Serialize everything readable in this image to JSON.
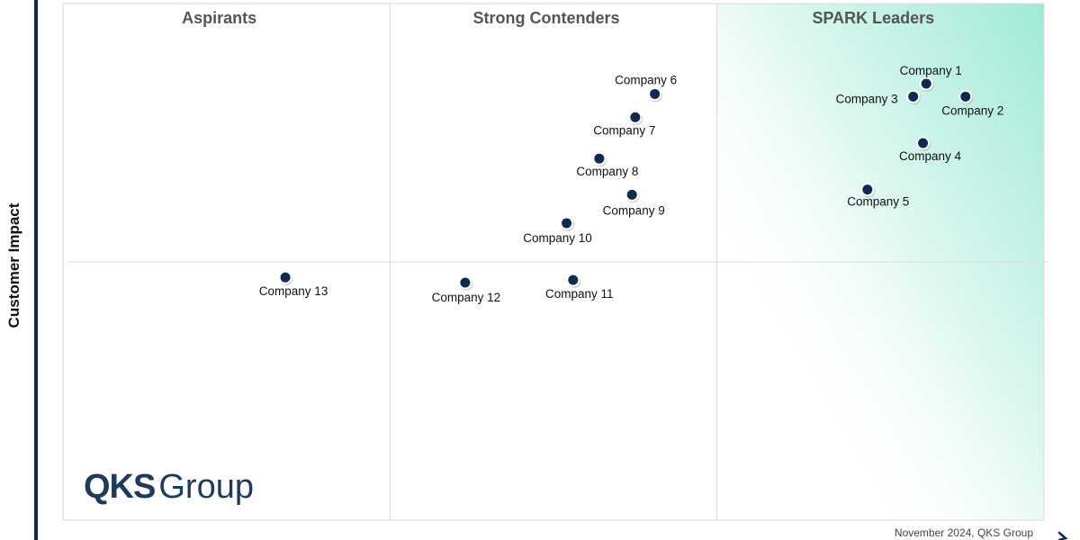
{
  "chart_data": {
    "type": "scatter",
    "title": "",
    "xlabel": "",
    "ylabel": "Customer Impact",
    "xlim": [
      0,
      3
    ],
    "ylim": [
      0,
      2
    ],
    "quadrants": [
      "Aspirants",
      "Strong Contenders",
      "SPARK Leaders"
    ],
    "points": [
      {
        "label": "Company 1",
        "x": 2.64,
        "y": 1.69
      },
      {
        "label": "Company 2",
        "x": 2.76,
        "y": 1.64
      },
      {
        "label": "Company 3",
        "x": 2.6,
        "y": 1.64
      },
      {
        "label": "Company 4",
        "x": 2.63,
        "y": 1.46
      },
      {
        "label": "Company 5",
        "x": 2.46,
        "y": 1.28
      },
      {
        "label": "Company 6",
        "x": 1.81,
        "y": 1.65
      },
      {
        "label": "Company 7",
        "x": 1.75,
        "y": 1.56
      },
      {
        "label": "Company 8",
        "x": 1.64,
        "y": 1.4
      },
      {
        "label": "Company 9",
        "x": 1.74,
        "y": 1.26
      },
      {
        "label": "Company 10",
        "x": 1.54,
        "y": 1.15
      },
      {
        "label": "Company 11",
        "x": 1.56,
        "y": 0.93
      },
      {
        "label": "Company 12",
        "x": 1.23,
        "y": 0.92
      },
      {
        "label": "Company 13",
        "x": 0.68,
        "y": 0.94
      }
    ]
  },
  "footer": "November 2024, QKS Group",
  "logo": {
    "bold": "QKS",
    "light": "Group"
  },
  "colors": {
    "point": "#0f2a4f",
    "axis": "#0f2a4f",
    "leaders_tint": "#8fe6cf",
    "quadrant_title": "#555555"
  }
}
